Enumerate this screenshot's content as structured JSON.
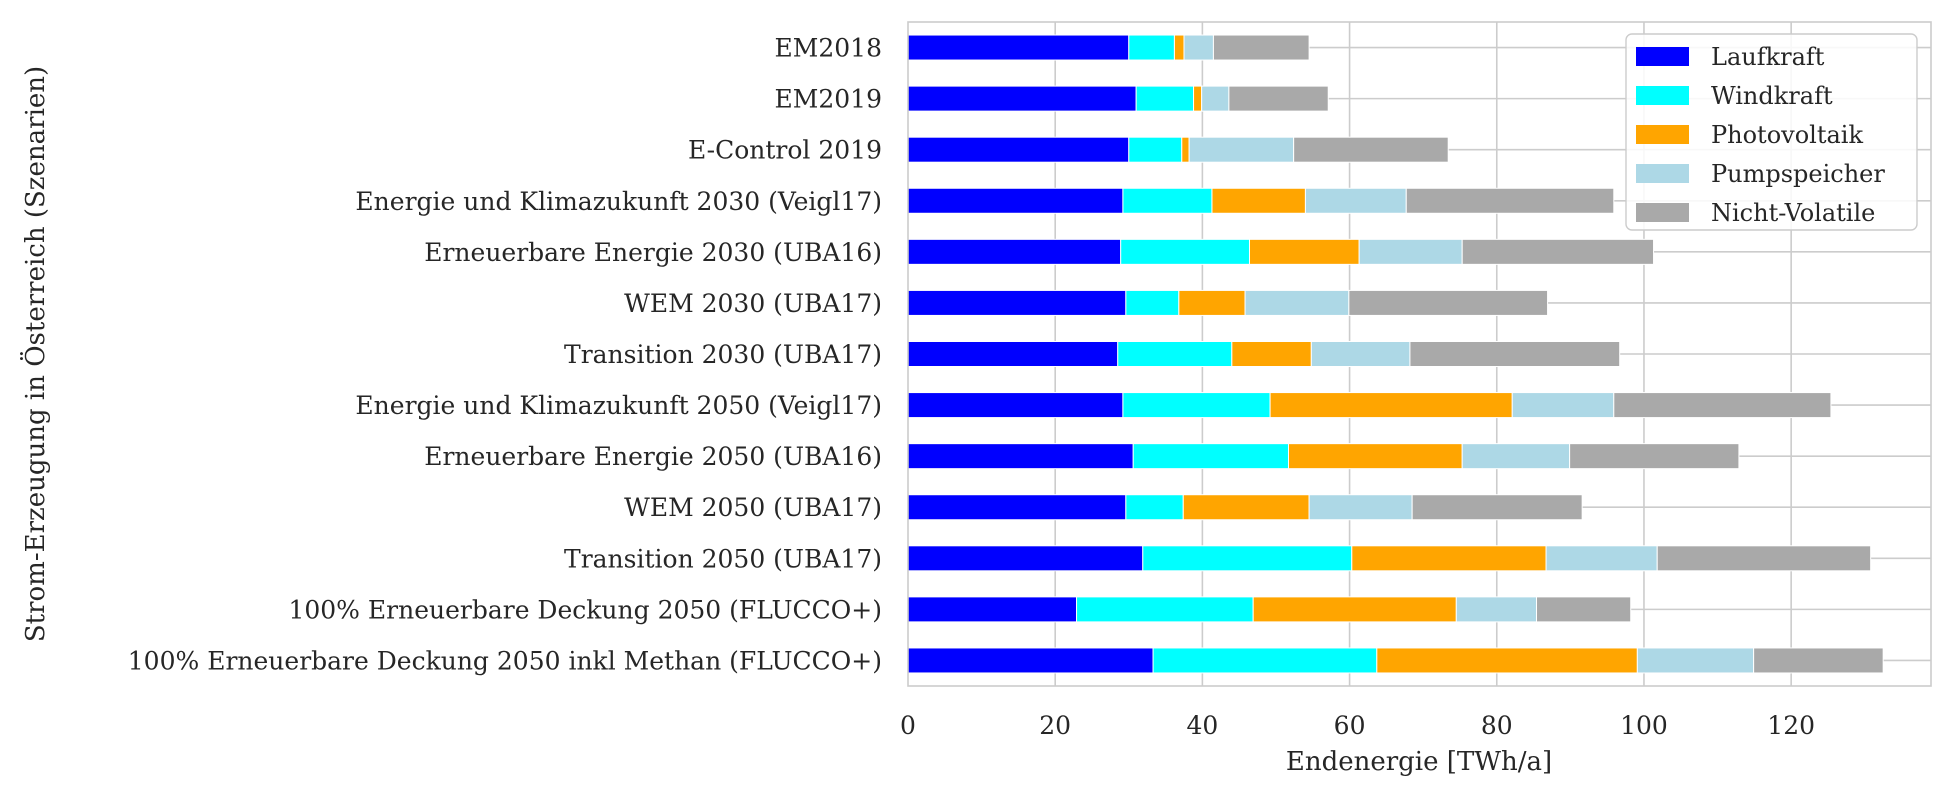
{
  "chart_data": {
    "type": "bar",
    "orientation": "horizontal",
    "stacked": true,
    "title": "",
    "xlabel": "Endenergie [TWh/a]",
    "ylabel": "Strom-Erzeugung in Österreich (Szenarien)",
    "xlim": [
      0,
      139
    ],
    "xticks": [
      0,
      20,
      40,
      60,
      80,
      100,
      120
    ],
    "grid": true,
    "legend_position": "top-right",
    "categories": [
      "EM2018",
      "EM2019",
      "E-Control 2019",
      "Energie und Klimazukunft 2030 (Veigl17)",
      "Erneuerbare Energie 2030 (UBA16)",
      "WEM 2030 (UBA17)",
      "Transition 2030 (UBA17)",
      "Energie und Klimazukunft 2050 (Veigl17)",
      "Erneuerbare Energie 2050 (UBA16)",
      "WEM 2050 (UBA17)",
      "Transition 2050 (UBA17)",
      "100% Erneuerbare Deckung 2050 (FLUCCO+)",
      "100% Erneuerbare Deckung 2050 inkl Methan (FLUCCO+)"
    ],
    "series": [
      {
        "name": "Laufkraft",
        "color": "#0000ff",
        "values": [
          30.0,
          31.0,
          30.0,
          29.2,
          28.9,
          29.6,
          28.5,
          29.2,
          30.6,
          29.6,
          31.9,
          22.9,
          33.3
        ]
      },
      {
        "name": "Windkraft",
        "color": "#00ffff",
        "values": [
          6.2,
          7.8,
          7.2,
          12.1,
          17.5,
          7.2,
          15.5,
          20.0,
          21.1,
          7.8,
          28.4,
          24.0,
          30.4
        ]
      },
      {
        "name": "Photovoltaik",
        "color": "#ffa500",
        "values": [
          1.3,
          1.1,
          1.0,
          12.7,
          14.9,
          9.0,
          10.8,
          32.9,
          23.6,
          17.1,
          26.4,
          27.6,
          35.4
        ]
      },
      {
        "name": "Pumpspeicher",
        "color": "#add8e6",
        "values": [
          4.0,
          3.7,
          14.2,
          13.7,
          14.0,
          14.1,
          13.4,
          13.8,
          14.6,
          14.0,
          15.1,
          10.9,
          15.8
        ]
      },
      {
        "name": "Nicht-Volatile",
        "color": "#a9a9a9",
        "values": [
          13.0,
          13.5,
          21.0,
          28.2,
          26.0,
          27.0,
          28.5,
          29.5,
          23.0,
          23.1,
          29.0,
          12.8,
          17.6
        ]
      }
    ]
  }
}
